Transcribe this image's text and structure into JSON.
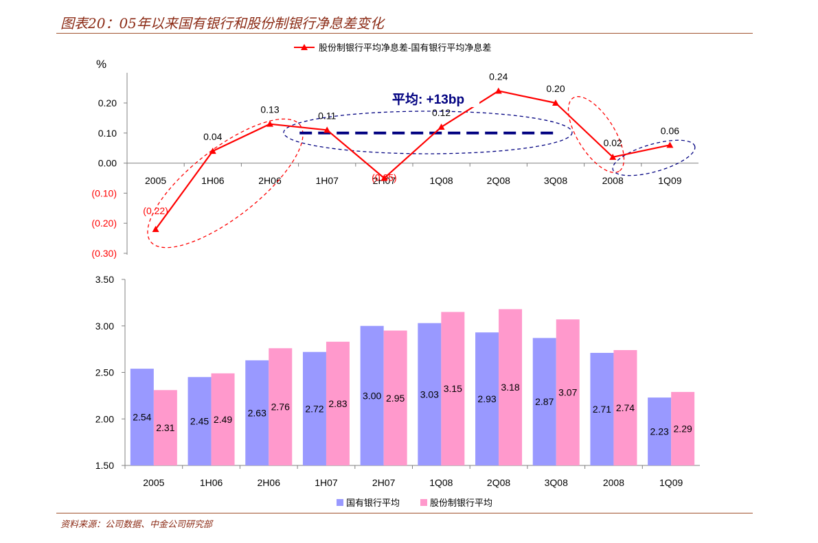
{
  "title": "图表20：05年以来国有银行和股份制银行净息差变化",
  "source": "资料来源：公司数据、中金公司研究部",
  "colors": {
    "spread": "#ff0000",
    "state": "#9999ff",
    "joint": "#ff99cc",
    "avg_line": "#000080",
    "neg_label": "#ff0000"
  },
  "chart_data": [
    {
      "type": "line",
      "unit_label": "%",
      "legend": [
        "股份制银行平均净息差-国有银行平均净息差"
      ],
      "legend_position": "top",
      "categories": [
        "2005",
        "1H06",
        "2H06",
        "1H07",
        "2H07",
        "1Q08",
        "2Q08",
        "3Q08",
        "2008",
        "1Q09"
      ],
      "series": [
        {
          "name": "股份制银行平均净息差-国有银行平均净息差",
          "values": [
            -0.22,
            0.04,
            0.13,
            0.11,
            -0.05,
            0.12,
            0.24,
            0.2,
            0.02,
            0.06
          ]
        }
      ],
      "data_labels": [
        "(0.22)",
        "0.04",
        "0.13",
        "0.11",
        "(0.05)",
        "0.12",
        "0.24",
        "0.20",
        "0.02",
        "0.06"
      ],
      "ylim": [
        -0.3,
        0.2
      ],
      "yticks": [
        "0.20",
        "0.10",
        "0.00",
        "(0.10)",
        "(0.20)",
        "(0.30)"
      ],
      "ytick_values": [
        0.2,
        0.1,
        0.0,
        -0.1,
        -0.2,
        -0.3
      ],
      "annotation": {
        "text": "平均: +13bp",
        "value": 0.1,
        "from": "1H07",
        "to": "3Q08"
      },
      "grid": false
    },
    {
      "type": "bar",
      "legend": [
        "国有银行平均",
        "股份制银行平均"
      ],
      "legend_position": "bottom",
      "categories": [
        "2005",
        "1H06",
        "2H06",
        "1H07",
        "2H07",
        "1Q08",
        "2Q08",
        "3Q08",
        "2008",
        "1Q09"
      ],
      "series": [
        {
          "name": "国有银行平均",
          "values": [
            2.54,
            2.45,
            2.63,
            2.72,
            3.0,
            3.03,
            2.93,
            2.87,
            2.71,
            2.23
          ],
          "labels": [
            "2.54",
            "2.45",
            "2.63",
            "2.72",
            "3.00",
            "3.03",
            "2.93",
            "2.87",
            "2.71",
            "2.23"
          ]
        },
        {
          "name": "股份制银行平均",
          "values": [
            2.31,
            2.49,
            2.76,
            2.83,
            2.95,
            3.15,
            3.18,
            3.07,
            2.74,
            2.29
          ],
          "labels": [
            "2.31",
            "2.49",
            "2.76",
            "2.83",
            "2.95",
            "3.15",
            "3.18",
            "3.07",
            "2.74",
            "2.29"
          ]
        }
      ],
      "ylim": [
        1.5,
        3.5
      ],
      "yticks": [
        "3.50",
        "3.00",
        "2.50",
        "2.00",
        "1.50"
      ],
      "ytick_values": [
        3.5,
        3.0,
        2.5,
        2.0,
        1.5
      ],
      "grid": false
    }
  ]
}
